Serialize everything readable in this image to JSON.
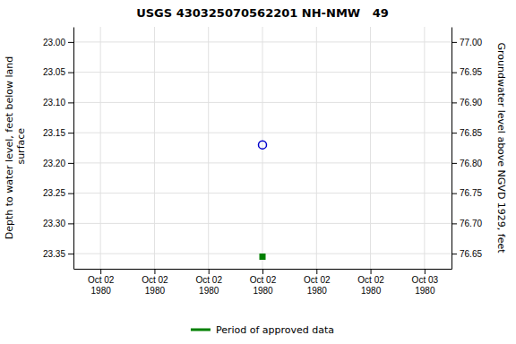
{
  "chart_data": {
    "type": "scatter",
    "title": "USGS 430325070562201 NH-NMW   49",
    "ylabel": "Depth to water level, feet below land\n surface",
    "y2label": "Groundwater level above NGVD 1929, feet",
    "categories": [
      "Oct 02\n1980",
      "Oct 02\n1980",
      "Oct 02\n1980",
      "Oct 02\n1980",
      "Oct 02\n1980",
      "Oct 02\n1980",
      "Oct 03\n1980"
    ],
    "series": [
      {
        "color": "#0000cc",
        "marker": "circle-open",
        "values": [
          null,
          null,
          null,
          23.17,
          null,
          null,
          null
        ]
      },
      {
        "name": "Period of approved data",
        "color": "#008000",
        "marker": "square",
        "values": [
          null,
          null,
          null,
          23.355,
          null,
          null,
          null
        ]
      }
    ],
    "ylim": [
      23.375,
      22.975
    ],
    "yticks": [
      {
        "value": 23.0,
        "label": "23.00"
      },
      23.05,
      {
        "value": 23.1,
        "label": "23.10"
      },
      23.15,
      {
        "value": 23.2,
        "label": "23.20"
      },
      23.25,
      {
        "value": 23.3,
        "label": "23.30"
      },
      23.35
    ],
    "y2lim": [
      76.625,
      77.025
    ],
    "y2ticks": [
      {
        "value": 77.0,
        "label": "77.00"
      },
      76.95,
      {
        "value": 76.9,
        "label": "76.90"
      },
      76.85,
      {
        "value": 76.8,
        "label": "76.80"
      },
      76.75,
      {
        "value": 76.7,
        "label": "76.70"
      },
      76.65
    ],
    "grid": true,
    "legend": "bottom"
  }
}
